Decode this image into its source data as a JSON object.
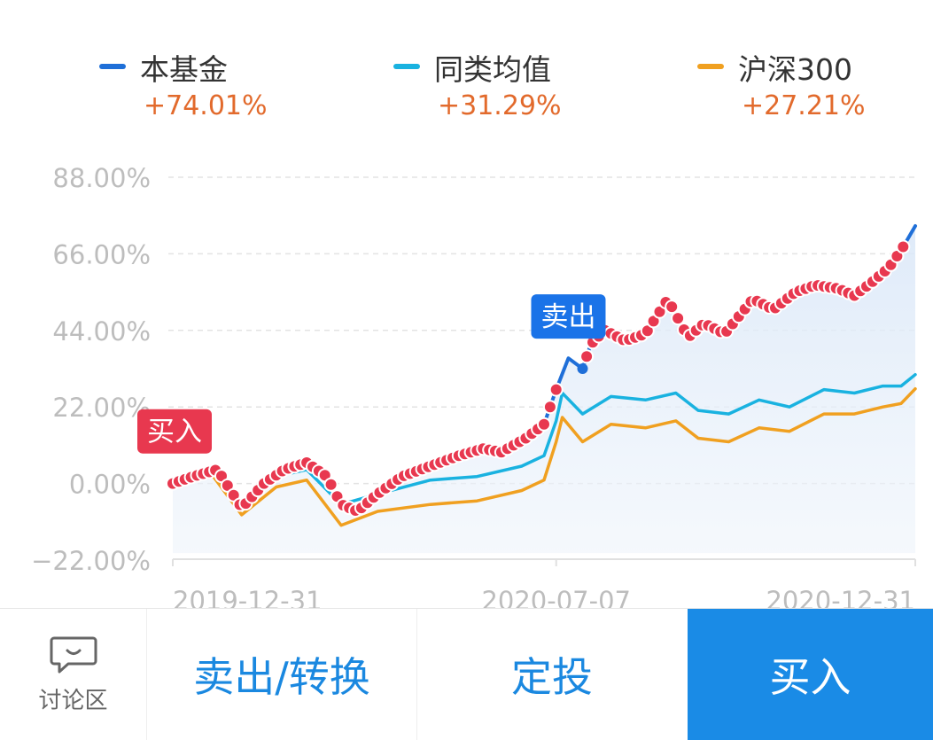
{
  "legend": [
    {
      "name": "本基金",
      "value": "+74.01%",
      "color": "#1f6fd8"
    },
    {
      "name": "同类均值",
      "value": "+31.29%",
      "color": "#19b2e0"
    },
    {
      "name": "沪深300",
      "value": "+27.21%",
      "color": "#f0a020"
    }
  ],
  "chart_data": {
    "type": "line",
    "y_ticks": [
      "88.00%",
      "66.00%",
      "44.00%",
      "22.00%",
      "0.00%",
      "−22.00%"
    ],
    "y_tick_values": [
      88,
      66,
      44,
      22,
      0,
      -22
    ],
    "ylim": [
      -22,
      88
    ],
    "x_tick_labels": [
      "2019-12-31",
      "2020-07-07",
      "2020-12-31"
    ],
    "x_tick_dates": [
      "2019-12-31",
      "2020-07-07",
      "2020-12-31"
    ],
    "xlim": [
      "2019-12-31",
      "2020-12-31"
    ],
    "grid": true,
    "series": [
      {
        "name": "本基金",
        "color": "#1f6fd8",
        "points": [
          [
            "2019-12-31",
            0
          ],
          [
            "2020-01-10",
            2
          ],
          [
            "2020-01-22",
            4
          ],
          [
            "2020-02-03",
            -7
          ],
          [
            "2020-02-14",
            0
          ],
          [
            "2020-02-24",
            4
          ],
          [
            "2020-03-06",
            6
          ],
          [
            "2020-03-16",
            2
          ],
          [
            "2020-03-23",
            -6
          ],
          [
            "2020-03-31",
            -8
          ],
          [
            "2020-04-10",
            -3
          ],
          [
            "2020-04-22",
            2
          ],
          [
            "2020-05-06",
            5
          ],
          [
            "2020-05-20",
            8
          ],
          [
            "2020-06-01",
            10
          ],
          [
            "2020-06-10",
            9
          ],
          [
            "2020-06-22",
            13
          ],
          [
            "2020-07-01",
            17
          ],
          [
            "2020-07-07",
            27
          ],
          [
            "2020-07-13",
            36
          ],
          [
            "2020-07-20",
            33
          ],
          [
            "2020-07-24",
            40
          ],
          [
            "2020-07-31",
            44
          ],
          [
            "2020-08-10",
            41
          ],
          [
            "2020-08-20",
            43
          ],
          [
            "2020-08-31",
            53
          ],
          [
            "2020-09-10",
            42
          ],
          [
            "2020-09-18",
            46
          ],
          [
            "2020-09-28",
            43
          ],
          [
            "2020-10-12",
            53
          ],
          [
            "2020-10-22",
            50
          ],
          [
            "2020-11-02",
            55
          ],
          [
            "2020-11-12",
            57
          ],
          [
            "2020-11-23",
            56
          ],
          [
            "2020-12-01",
            54
          ],
          [
            "2020-12-10",
            58
          ],
          [
            "2020-12-18",
            62
          ],
          [
            "2020-12-24",
            67
          ],
          [
            "2020-12-31",
            74
          ]
        ]
      },
      {
        "name": "同类均值",
        "color": "#19b2e0",
        "points": [
          [
            "2019-12-31",
            0
          ],
          [
            "2020-01-20",
            3
          ],
          [
            "2020-02-03",
            -6
          ],
          [
            "2020-02-20",
            2
          ],
          [
            "2020-03-06",
            4
          ],
          [
            "2020-03-23",
            -6
          ],
          [
            "2020-04-10",
            -3
          ],
          [
            "2020-05-06",
            1
          ],
          [
            "2020-05-29",
            2
          ],
          [
            "2020-06-20",
            5
          ],
          [
            "2020-07-01",
            8
          ],
          [
            "2020-07-07",
            18
          ],
          [
            "2020-07-10",
            26
          ],
          [
            "2020-07-20",
            20
          ],
          [
            "2020-08-03",
            25
          ],
          [
            "2020-08-20",
            24
          ],
          [
            "2020-09-04",
            26
          ],
          [
            "2020-09-15",
            21
          ],
          [
            "2020-09-30",
            20
          ],
          [
            "2020-10-15",
            24
          ],
          [
            "2020-10-30",
            22
          ],
          [
            "2020-11-16",
            27
          ],
          [
            "2020-12-01",
            26
          ],
          [
            "2020-12-15",
            28
          ],
          [
            "2020-12-24",
            28
          ],
          [
            "2020-12-31",
            31.29
          ]
        ]
      },
      {
        "name": "沪深300",
        "color": "#f0a020",
        "points": [
          [
            "2019-12-31",
            0
          ],
          [
            "2020-01-20",
            2
          ],
          [
            "2020-02-03",
            -9
          ],
          [
            "2020-02-20",
            -1
          ],
          [
            "2020-03-06",
            1
          ],
          [
            "2020-03-23",
            -12
          ],
          [
            "2020-04-10",
            -8
          ],
          [
            "2020-05-06",
            -6
          ],
          [
            "2020-05-29",
            -5
          ],
          [
            "2020-06-20",
            -2
          ],
          [
            "2020-07-01",
            1
          ],
          [
            "2020-07-07",
            12
          ],
          [
            "2020-07-10",
            19
          ],
          [
            "2020-07-20",
            12
          ],
          [
            "2020-08-03",
            17
          ],
          [
            "2020-08-20",
            16
          ],
          [
            "2020-09-04",
            18
          ],
          [
            "2020-09-15",
            13
          ],
          [
            "2020-09-30",
            12
          ],
          [
            "2020-10-15",
            16
          ],
          [
            "2020-10-30",
            15
          ],
          [
            "2020-11-16",
            20
          ],
          [
            "2020-12-01",
            20
          ],
          [
            "2020-12-15",
            22
          ],
          [
            "2020-12-24",
            23
          ],
          [
            "2020-12-31",
            27.21
          ]
        ]
      }
    ],
    "annotations": [
      {
        "text": "买入",
        "date": "2019-12-31",
        "value": 15,
        "color": "#e8384f"
      },
      {
        "text": "卖出",
        "date": "2020-07-13",
        "value": 48,
        "color": "#1a73e8"
      }
    ]
  },
  "bottom_bar": {
    "discuss_label": "讨论区",
    "discuss_icon": "chat-bubble-icon",
    "sell_label": "卖出/转换",
    "dingtou_label": "定投",
    "buy_label": "买入"
  }
}
